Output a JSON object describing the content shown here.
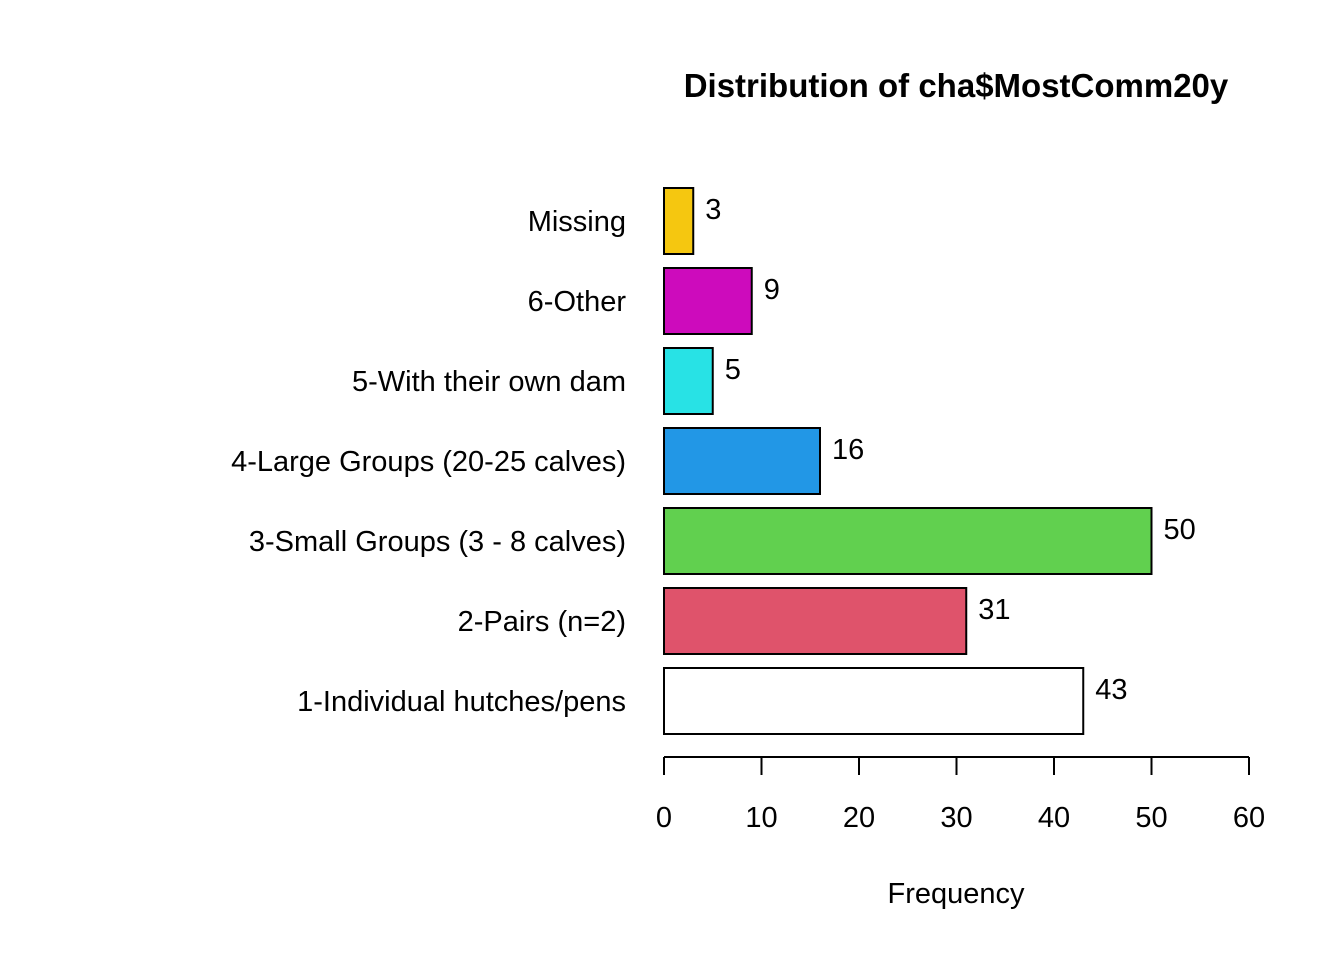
{
  "chart_data": {
    "type": "bar",
    "orientation": "horizontal",
    "title": "Distribution of cha$MostComm20y",
    "xlabel": "Frequency",
    "ylabel": "",
    "xlim": [
      0,
      60
    ],
    "xticks": [
      0,
      10,
      20,
      30,
      40,
      50,
      60
    ],
    "grid": false,
    "categories": [
      "1-Individual hutches/pens",
      "2-Pairs (n=2)",
      "3-Small Groups (3 - 8 calves)",
      "4-Large Groups (20-25 calves)",
      "5-With their own dam",
      "6-Other",
      "Missing"
    ],
    "values": [
      43,
      31,
      50,
      16,
      5,
      9,
      3
    ],
    "colors": [
      "#FFFFFF",
      "#DF536B",
      "#61D04F",
      "#2297E6",
      "#28E2E5",
      "#CD0BBC",
      "#F5C710"
    ],
    "data_labels": true
  }
}
